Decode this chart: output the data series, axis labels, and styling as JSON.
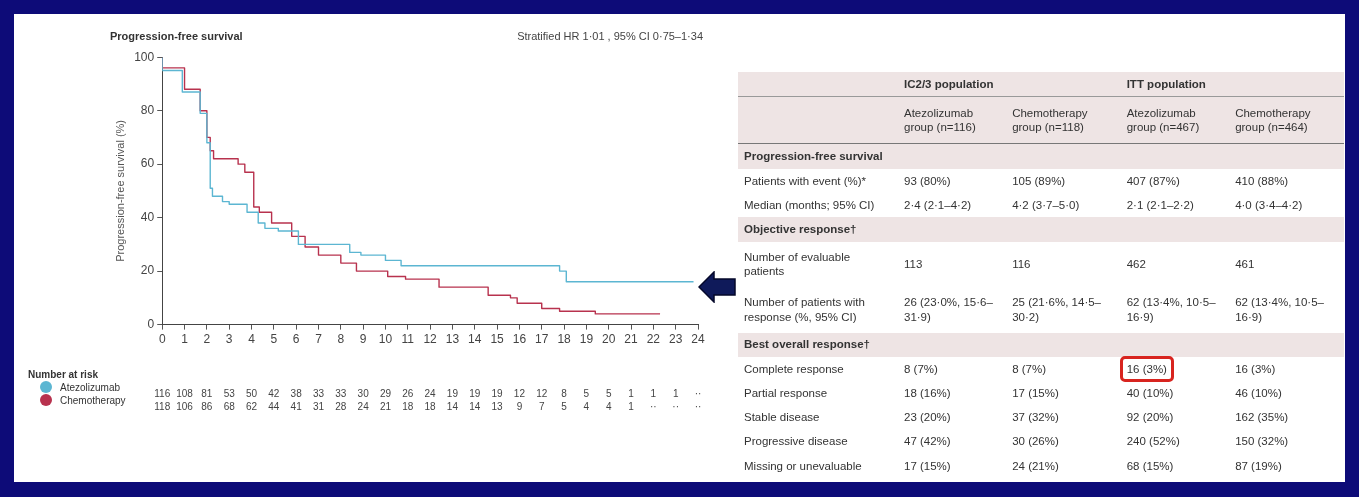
{
  "chart_data": [
    {
      "type": "step",
      "title": "Progression-free survival",
      "ylabel": "Progression-free survival (%)",
      "legend_title": "Number at risk",
      "legend": "bottom left",
      "grid": false,
      "xlim": [
        0,
        24
      ],
      "xticks": [
        0,
        1,
        2,
        3,
        4,
        5,
        6,
        7,
        8,
        9,
        10,
        11,
        12,
        13,
        14,
        15,
        16,
        17,
        18,
        19,
        20,
        21,
        22,
        23,
        24
      ],
      "ylim": [
        0,
        100
      ],
      "yticks": [
        0,
        20,
        40,
        60,
        80,
        100
      ],
      "annotations": [
        "Stratified HR 1·01 , 95% CI 0·75–1·34",
        "116 108 81 53 50 42 38 33 33 30 29 26 24 19 19 19 12 12 8 5 5 1 1 1 ··",
        "118 106 86 68 62 44 41 31 28 24 21 18 18 14 14 13 9 7 5 4 4 1 ·· ·· ··"
      ],
      "series": [
        {
          "name": "Atezolizumab",
          "color": "#5cb6d2",
          "x": [
            0,
            0.9,
            1.7,
            2,
            2.15,
            2.25,
            2.7,
            3,
            3.8,
            4.3,
            4.6,
            5.2,
            6.1,
            6.7,
            8.4,
            8.9,
            10,
            10.7,
            13.2,
            17.8,
            18.1,
            18.7,
            23.8
          ],
          "values": [
            100,
            95,
            87,
            79,
            68,
            51,
            48,
            46,
            45,
            42,
            38,
            36,
            35,
            30,
            30,
            27,
            26,
            24,
            22,
            22,
            20,
            16,
            16
          ]
        },
        {
          "name": "Chemotherapy",
          "color": "#b8324e",
          "x": [
            0,
            1,
            1.7,
            2,
            2.15,
            2.3,
            2.4,
            3.4,
            3.7,
            4.1,
            4.35,
            4.9,
            5.8,
            6.4,
            7,
            8,
            8.7,
            10.1,
            10.9,
            12.4,
            12.7,
            14.6,
            15.6,
            15.9,
            17,
            17.8,
            19.4,
            20.4,
            22.3
          ],
          "values": [
            100,
            96,
            88,
            80,
            70,
            65,
            62,
            62,
            60,
            57,
            44,
            42,
            38,
            33,
            29,
            26,
            23,
            20,
            18,
            17,
            14,
            14,
            11,
            10,
            8,
            6,
            5,
            4,
            4
          ]
        }
      ]
    },
    {
      "type": "other",
      "annotations": [
        "IC2/3 population",
        "ITT population",
        "Atezolizumab group (n=116)",
        "Chemotherapy group (n=118)",
        "Atezolizumab group (n=467)",
        "Chemotherapy group (n=464)",
        "Progression-free survival",
        "Patients with event (%)*",
        "93 (80%)",
        "105 (89%)",
        "407 (87%)",
        "410 (88%)",
        "Median (months; 95% CI)",
        "2·4 (2·1–4·2)",
        "4·2 (3·7–5·0)",
        "2·1 (2·1–2·2)",
        "4·0 (3·4–4·2)",
        "Objective response†",
        "Number of evaluable patients",
        "113",
        "116",
        "462",
        "461",
        "Number of patients with response (%, 95% CI)",
        "26 (23·0%, 15·6–31·9)",
        "25 (21·6%, 14·5–30·2)",
        "62 (13·4%, 10·5–16·9)",
        "62 (13·4%, 10·5–16·9)",
        "Best overall response†",
        "Complete response",
        "8 (7%)",
        "8 (7%)",
        "16 (3%)",
        "16 (3%)",
        "Partial response",
        "18 (16%)",
        "17 (15%)",
        "40 (10%)",
        "46 (10%)",
        "Stable disease",
        "23 (20%)",
        "37 (32%)",
        "92 (20%)",
        "162 (35%)",
        "Progressive disease",
        "47 (42%)",
        "30 (26%)",
        "240 (52%)",
        "150 (32%)",
        "Missing or unevaluable",
        "17 (15%)",
        "24 (21%)",
        "68 (15%)",
        "87 (19%)"
      ]
    }
  ]
}
